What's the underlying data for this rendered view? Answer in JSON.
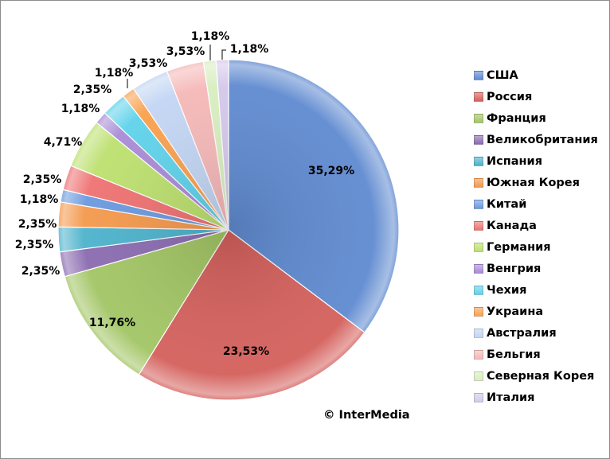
{
  "chart_data": {
    "type": "pie",
    "start": "top",
    "direction": "clockwise",
    "legend_position": "right",
    "categories": [
      "США",
      "Россия",
      "Франция",
      "Великобритания",
      "Испания",
      "Южная Корея",
      "Китай",
      "Канада",
      "Германия",
      "Венгрия",
      "Чехия",
      "Украина",
      "Австралия",
      "Бельгия",
      "Северная Корея",
      "Италия"
    ],
    "values": [
      35.29,
      23.53,
      11.76,
      2.35,
      2.35,
      2.35,
      1.18,
      2.35,
      4.71,
      1.18,
      2.35,
      1.18,
      3.53,
      3.53,
      1.18,
      1.18
    ],
    "data_labels": [
      "35,29%",
      "23,53%",
      "11,76%",
      "2,35%",
      "2,35%",
      "2,35%",
      "1,18%",
      "2,35%",
      "4,71%",
      "1,18%",
      "2,35%",
      "1,18%",
      "3,53%",
      "3,53%",
      "1,18%",
      "1,18%"
    ],
    "colors": [
      "#5f8ad0",
      "#d4605c",
      "#a2c564",
      "#8a6bb0",
      "#4cb2cc",
      "#f4984c",
      "#6a99df",
      "#ef7171",
      "#bce06e",
      "#a88bd6",
      "#5fd2ea",
      "#f9a04e",
      "#c2d5f3",
      "#f5b8b8",
      "#d8eebf",
      "#d4c8ea"
    ]
  },
  "copyright": "© InterMedia"
}
